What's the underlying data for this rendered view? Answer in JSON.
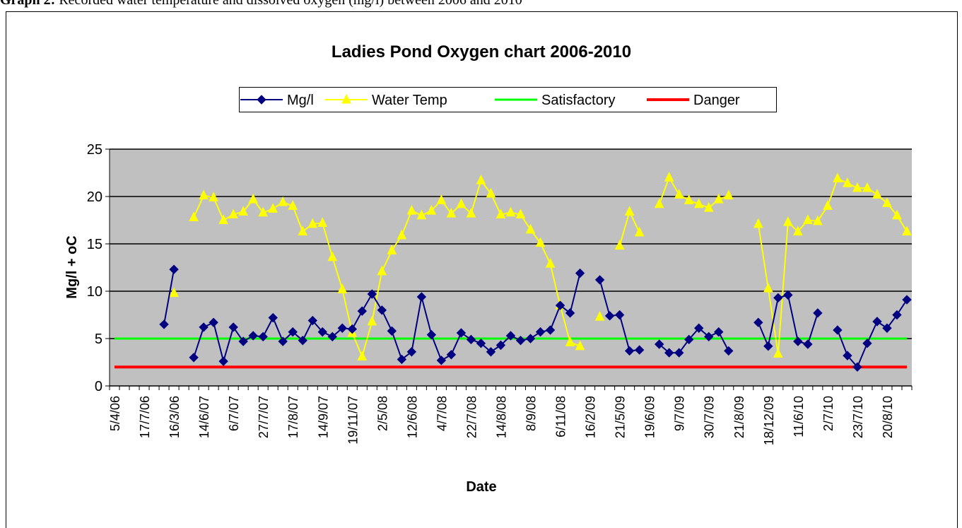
{
  "chart_data": {
    "type": "line",
    "caption_label": "Graph 2:",
    "caption_text": "Recorded water temperature and dissolved oxygen (mg/l) between 2006 and 2010",
    "title": "Ladies Pond Oxygen chart 2006-2010",
    "x_label": "Date",
    "y_label": "Mg/l + oC",
    "ylim": [
      0,
      25
    ],
    "yticks": [
      0,
      5,
      10,
      15,
      20,
      25
    ],
    "grid": true,
    "legend": "top",
    "categories": [
      "5/4/06",
      null,
      null,
      "17/7/06",
      null,
      null,
      "16/3/06",
      null,
      null,
      "14/6/07",
      null,
      null,
      "6/7/07",
      null,
      null,
      "27/7/07",
      null,
      null,
      "17/8/07",
      null,
      null,
      "14/9/07",
      null,
      null,
      "19/11/07",
      null,
      null,
      "2/5/08",
      null,
      null,
      "12/6/08",
      null,
      null,
      "4/7/08",
      null,
      null,
      "22/7/08",
      null,
      null,
      "14/8/08",
      null,
      null,
      "8/9/08",
      null,
      null,
      "6/11/08",
      null,
      null,
      "16/2/09",
      null,
      null,
      "21/5/09",
      null,
      null,
      "19/6/09",
      null,
      null,
      "9/7/09",
      null,
      null,
      "30/7/09",
      null,
      null,
      "21/8/09",
      null,
      null,
      "18/12/09",
      null,
      null,
      "11/6/10",
      null,
      null,
      "2/7/10",
      null,
      null,
      "23/7/10",
      null,
      null,
      "20/8/10",
      null,
      null
    ],
    "series": [
      {
        "name": "Mg/l",
        "color": "#000080",
        "marker": "diamond",
        "values": [
          null,
          null,
          null,
          null,
          null,
          6.5,
          12.3,
          null,
          3.0,
          6.2,
          6.7,
          2.6,
          6.2,
          4.7,
          5.3,
          5.2,
          7.2,
          4.7,
          5.7,
          4.8,
          6.9,
          5.7,
          5.2,
          6.1,
          6.0,
          7.9,
          9.7,
          8.0,
          5.8,
          2.8,
          3.6,
          9.4,
          5.4,
          2.7,
          3.3,
          5.6,
          4.9,
          4.5,
          3.6,
          4.3,
          5.3,
          4.8,
          5.0,
          5.7,
          5.9,
          8.5,
          7.7,
          11.9,
          null,
          11.2,
          7.4,
          7.5,
          3.7,
          3.8,
          null,
          4.4,
          3.5,
          3.5,
          4.9,
          6.1,
          5.2,
          5.7,
          3.7,
          null,
          null,
          6.7,
          4.2,
          9.3,
          9.6,
          4.7,
          4.4,
          7.7,
          null,
          5.9,
          3.2,
          2.0,
          4.5,
          6.8,
          6.1,
          7.5,
          9.1
        ]
      },
      {
        "name": "Water Temp",
        "color": "#FFFF00",
        "marker": "triangle",
        "values": [
          null,
          null,
          null,
          null,
          null,
          null,
          9.8,
          null,
          17.8,
          20.1,
          19.9,
          17.5,
          18.1,
          18.4,
          19.7,
          18.3,
          18.7,
          19.4,
          19.0,
          16.3,
          17.1,
          17.2,
          13.6,
          10.2,
          5.6,
          3.1,
          6.8,
          12.1,
          14.3,
          15.9,
          18.5,
          18.0,
          18.5,
          19.6,
          18.2,
          19.2,
          18.2,
          21.7,
          20.3,
          18.1,
          18.3,
          18.1,
          16.5,
          15.1,
          12.9,
          8.5,
          4.6,
          4.2,
          null,
          7.3,
          null,
          14.8,
          18.4,
          16.2,
          null,
          19.2,
          22.0,
          20.2,
          19.6,
          19.2,
          18.8,
          19.7,
          20.1,
          null,
          null,
          17.1,
          10.3,
          3.4,
          17.3,
          16.3,
          17.5,
          17.4,
          19.0,
          21.9,
          21.4,
          20.9,
          20.9,
          20.2,
          19.3,
          18.0,
          16.3
        ]
      },
      {
        "name": "Satisfactory",
        "color": "#00FF00",
        "marker": null,
        "values": [
          5,
          5,
          5,
          5,
          5,
          5,
          5,
          5,
          5,
          5,
          5,
          5,
          5,
          5,
          5,
          5,
          5,
          5,
          5,
          5,
          5,
          5,
          5,
          5,
          5,
          5,
          5,
          5,
          5,
          5,
          5,
          5,
          5,
          5,
          5,
          5,
          5,
          5,
          5,
          5,
          5,
          5,
          5,
          5,
          5,
          5,
          5,
          5,
          5,
          5,
          5,
          5,
          5,
          5,
          5,
          5,
          5,
          5,
          5,
          5,
          5,
          5,
          5,
          5,
          5,
          5,
          5,
          5,
          5,
          5,
          5,
          5,
          5,
          5,
          5,
          5,
          5,
          5,
          5,
          5,
          5
        ]
      },
      {
        "name": "Danger",
        "color": "#FF0000",
        "marker": null,
        "values": [
          2,
          2,
          2,
          2,
          2,
          2,
          2,
          2,
          2,
          2,
          2,
          2,
          2,
          2,
          2,
          2,
          2,
          2,
          2,
          2,
          2,
          2,
          2,
          2,
          2,
          2,
          2,
          2,
          2,
          2,
          2,
          2,
          2,
          2,
          2,
          2,
          2,
          2,
          2,
          2,
          2,
          2,
          2,
          2,
          2,
          2,
          2,
          2,
          2,
          2,
          2,
          2,
          2,
          2,
          2,
          2,
          2,
          2,
          2,
          2,
          2,
          2,
          2,
          2,
          2,
          2,
          2,
          2,
          2,
          2,
          2,
          2,
          2,
          2,
          2,
          2,
          2,
          2,
          2,
          2,
          2
        ]
      }
    ]
  }
}
